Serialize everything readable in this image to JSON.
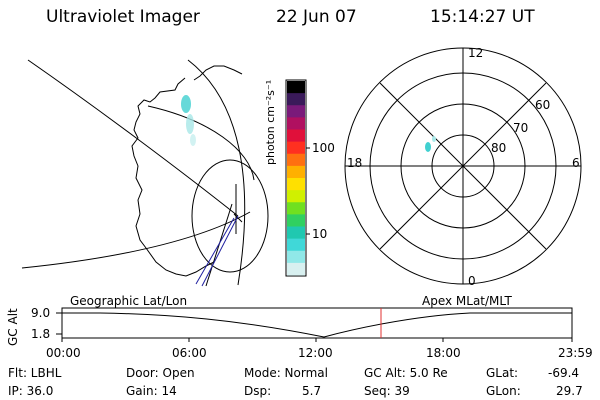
{
  "header": {
    "instrument": "Ultraviolet Imager",
    "date": "22 Jun 07",
    "time": "15:14:27 UT"
  },
  "colorbar": {
    "unit_label": "photon cm⁻²s⁻¹",
    "ticks": [
      "100",
      "10"
    ],
    "colors": [
      "#000000",
      "#3a1a5a",
      "#7a1a7a",
      "#b01060",
      "#e0103a",
      "#ff3020",
      "#ff7010",
      "#ffb000",
      "#ffe000",
      "#d0f000",
      "#70e020",
      "#30d060",
      "#20c8b0",
      "#40d8d8",
      "#90e8e8",
      "#d8f0f0"
    ]
  },
  "polar_plot": {
    "labels": {
      "top": "12",
      "bottom": "0",
      "left": "18",
      "right": "6"
    },
    "lat_labels": [
      "60",
      "70",
      "80"
    ]
  },
  "timeline": {
    "left_title": "Geographic Lat/Lon",
    "right_title": "Apex MLat/MLT",
    "axis_label": "GC Alt",
    "y_ticks": [
      "9.0",
      "1.8"
    ],
    "x_ticks": [
      "00:00",
      "06:00",
      "12:00",
      "18:00",
      "23:59"
    ],
    "marker_color": "#e03030"
  },
  "status": {
    "flt": "Flt: LBHL",
    "ip": "IP: 36.0",
    "door": "Door: Open",
    "gain": "Gain: 14",
    "mode": "Mode: Normal",
    "dsp_label": "Dsp:",
    "dsp_value": "5.7",
    "gc_alt": "GC Alt: 5.0 Re",
    "seq": "Seq: 39",
    "glat_label": "GLat:",
    "glat_value": "-69.4",
    "glon_label": "GLon:",
    "glon_value": "29.7"
  }
}
